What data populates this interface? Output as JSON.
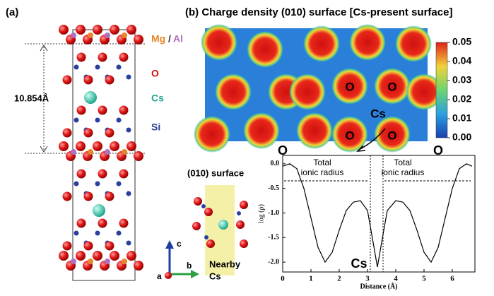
{
  "panel_a": {
    "label": "(a)",
    "spacing": "10.854Å",
    "mg": "Mg",
    "slash": "/",
    "al": "Al",
    "o": "O",
    "cs": "Cs",
    "si": "Si",
    "axis_a": "a",
    "axis_b": "b",
    "axis_c": "c"
  },
  "panel_b": {
    "title": "(b) Charge density (010) surface [Cs-present surface]",
    "map_labels": [
      "O",
      "O",
      "O",
      "O",
      "Cs"
    ],
    "colorbar_ticks": [
      0.05,
      0.04,
      0.03,
      0.02,
      0.01,
      {
        "value": 0,
        "label": "0.00"
      }
    ],
    "colorbar_lim": [
      0,
      0.05
    ],
    "inset_title": "(010) surface",
    "inset_label": [
      "Nearby",
      "Cs"
    ]
  },
  "chart_data": {
    "type": "line",
    "xlabel": "Distance (Å)",
    "ylabel": "log (ρ)",
    "x": [
      0,
      0.25,
      0.5,
      0.75,
      1.0,
      1.25,
      1.5,
      1.75,
      2.0,
      2.25,
      2.5,
      2.75,
      3.0,
      3.2,
      3.35,
      3.5,
      3.7,
      4.0,
      4.25,
      4.5,
      4.75,
      5.0,
      5.25,
      5.5,
      5.75,
      6.0,
      6.25,
      6.5,
      6.7
    ],
    "series": [
      {
        "name": "log (ρ)",
        "color": "#000000",
        "values": [
          -0.05,
          0.0,
          -0.1,
          -0.5,
          -1.1,
          -1.7,
          -2.0,
          -1.8,
          -1.35,
          -0.95,
          -0.78,
          -0.75,
          -0.95,
          -1.6,
          -2.1,
          -1.6,
          -0.95,
          -0.75,
          -0.78,
          -0.95,
          -1.35,
          -1.8,
          -2.0,
          -1.7,
          -1.1,
          -0.5,
          -0.1,
          0.0,
          -0.05
        ]
      }
    ],
    "xlim": [
      0,
      6.8
    ],
    "ylim": [
      -2.2,
      0.17
    ],
    "xticks": [
      0,
      1,
      2,
      3,
      4,
      5,
      6
    ],
    "yticks": [
      {
        "value": 0,
        "label": "0.0"
      },
      -0.5,
      {
        "value": -1,
        "label": "-1.0"
      },
      -1.5,
      {
        "value": -2,
        "label": "-2.0"
      }
    ],
    "vlines": [
      3.1,
      3.55
    ],
    "annotations": {
      "left_o": "O",
      "right_o": "O",
      "cs": "Cs",
      "left_radius": [
        "Total",
        "ionic radius"
      ],
      "right_radius": [
        "Total",
        "ionic radius"
      ]
    }
  }
}
